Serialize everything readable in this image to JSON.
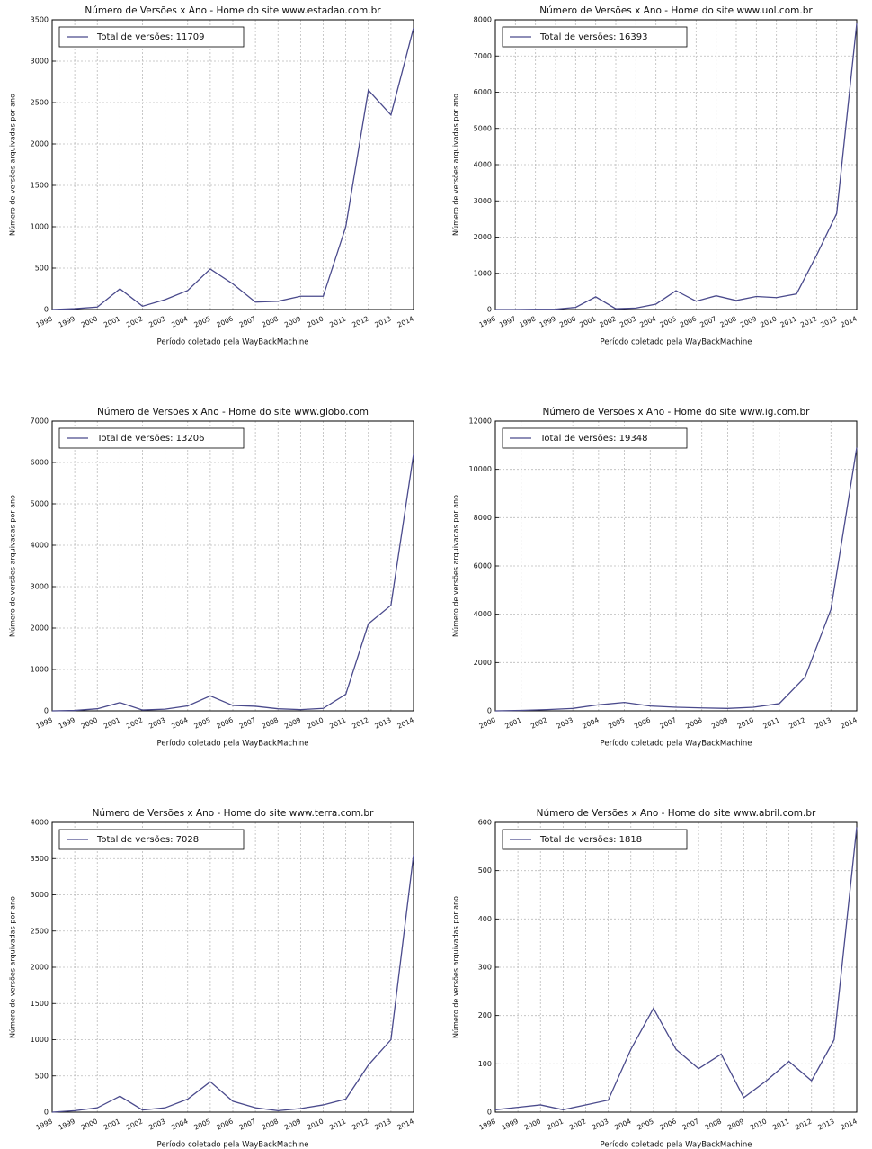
{
  "chart_data": [
    {
      "type": "line",
      "title": "Número de Versões x Ano - Home do site www.estadao.com.br",
      "xlabel": "Período coletado pela WayBackMachine",
      "ylabel": "Número de versões arquivadas por ano",
      "categories": [
        "1998",
        "1999",
        "2000",
        "2001",
        "2002",
        "2003",
        "2004",
        "2005",
        "2006",
        "2007",
        "2008",
        "2009",
        "2010",
        "2011",
        "2012",
        "2013",
        "2014"
      ],
      "series": [
        {
          "name": "Total de versões: 11709",
          "color": "#4a4a8c",
          "values": [
            0,
            10,
            30,
            250,
            40,
            120,
            230,
            490,
            310,
            90,
            100,
            160,
            160,
            1000,
            2650,
            2350,
            3400
          ]
        }
      ],
      "ylim": [
        0,
        3500
      ],
      "yticks": [
        0,
        500,
        1000,
        1500,
        2000,
        2500,
        3000,
        3500
      ],
      "grid": true,
      "legend": "upper left"
    },
    {
      "type": "line",
      "title": "Número de Versões x Ano - Home do site www.uol.com.br",
      "xlabel": "Período coletado pela WayBackMachine",
      "ylabel": "Número de versões arquivadas por ano",
      "categories": [
        "1996",
        "1997",
        "1998",
        "1999",
        "2000",
        "2001",
        "2002",
        "2003",
        "2004",
        "2005",
        "2006",
        "2007",
        "2008",
        "2009",
        "2010",
        "2011",
        "2012",
        "2013",
        "2014"
      ],
      "series": [
        {
          "name": "Total de versões: 16393",
          "color": "#4a4a8c",
          "values": [
            0,
            0,
            5,
            10,
            60,
            350,
            20,
            40,
            150,
            520,
            230,
            380,
            250,
            360,
            330,
            430,
            1500,
            2650,
            7900
          ]
        }
      ],
      "ylim": [
        0,
        8000
      ],
      "yticks": [
        0,
        1000,
        2000,
        3000,
        4000,
        5000,
        6000,
        7000,
        8000
      ],
      "grid": true,
      "legend": "upper left"
    },
    {
      "type": "line",
      "title": "Número de Versões x Ano - Home do site www.globo.com",
      "xlabel": "Período coletado pela WayBackMachine",
      "ylabel": "Número de versões arquivadas por ano",
      "categories": [
        "1998",
        "1999",
        "2000",
        "2001",
        "2002",
        "2003",
        "2004",
        "2005",
        "2006",
        "2007",
        "2008",
        "2009",
        "2010",
        "2011",
        "2012",
        "2013",
        "2014"
      ],
      "series": [
        {
          "name": "Total de versões: 13206",
          "color": "#4a4a8c",
          "values": [
            0,
            10,
            50,
            200,
            20,
            40,
            120,
            360,
            130,
            110,
            50,
            30,
            60,
            400,
            2100,
            2550,
            6200
          ]
        }
      ],
      "ylim": [
        0,
        7000
      ],
      "yticks": [
        0,
        1000,
        2000,
        3000,
        4000,
        5000,
        6000,
        7000
      ],
      "grid": true,
      "legend": "upper left"
    },
    {
      "type": "line",
      "title": "Número de Versões x Ano - Home do site www.ig.com.br",
      "xlabel": "Período coletado pela WayBackMachine",
      "ylabel": "Número de versões arquivadas por ano",
      "categories": [
        "2000",
        "2001",
        "2002",
        "2003",
        "2004",
        "2005",
        "2006",
        "2007",
        "2008",
        "2009",
        "2010",
        "2011",
        "2012",
        "2013",
        "2014"
      ],
      "series": [
        {
          "name": "Total de versões: 19348",
          "color": "#4a4a8c",
          "values": [
            0,
            20,
            50,
            100,
            250,
            350,
            200,
            150,
            120,
            100,
            150,
            300,
            1400,
            4200,
            10900
          ]
        }
      ],
      "ylim": [
        0,
        12000
      ],
      "yticks": [
        0,
        2000,
        4000,
        6000,
        8000,
        10000,
        12000
      ],
      "grid": true,
      "legend": "upper left"
    },
    {
      "type": "line",
      "title": "Número de Versões x Ano - Home do site www.terra.com.br",
      "xlabel": "Período coletado pela WayBackMachine",
      "ylabel": "Número de versões arquivadas por ano",
      "categories": [
        "1998",
        "1999",
        "2000",
        "2001",
        "2002",
        "2003",
        "2004",
        "2005",
        "2006",
        "2007",
        "2008",
        "2009",
        "2010",
        "2011",
        "2012",
        "2013",
        "2014"
      ],
      "series": [
        {
          "name": "Total de versões: 7028",
          "color": "#4a4a8c",
          "values": [
            0,
            20,
            60,
            220,
            30,
            60,
            180,
            420,
            150,
            60,
            20,
            50,
            100,
            180,
            650,
            1000,
            3550
          ]
        }
      ],
      "ylim": [
        0,
        4000
      ],
      "yticks": [
        0,
        500,
        1000,
        1500,
        2000,
        2500,
        3000,
        3500,
        4000
      ],
      "grid": true,
      "legend": "upper left"
    },
    {
      "type": "line",
      "title": "Número de Versões x Ano - Home do site www.abril.com.br",
      "xlabel": "Período coletado pela WayBackMachine",
      "ylabel": "Número de versões arquivadas por ano",
      "categories": [
        "1998",
        "1999",
        "2000",
        "2001",
        "2002",
        "2003",
        "2004",
        "2005",
        "2006",
        "2007",
        "2008",
        "2009",
        "2010",
        "2011",
        "2012",
        "2013",
        "2014"
      ],
      "series": [
        {
          "name": "Total de versões: 1818",
          "color": "#4a4a8c",
          "values": [
            5,
            10,
            15,
            5,
            15,
            25,
            130,
            215,
            130,
            90,
            120,
            30,
            65,
            105,
            65,
            150,
            590
          ]
        }
      ],
      "ylim": [
        0,
        600
      ],
      "yticks": [
        0,
        100,
        200,
        300,
        400,
        500,
        600
      ],
      "grid": true,
      "legend": "upper left"
    }
  ]
}
